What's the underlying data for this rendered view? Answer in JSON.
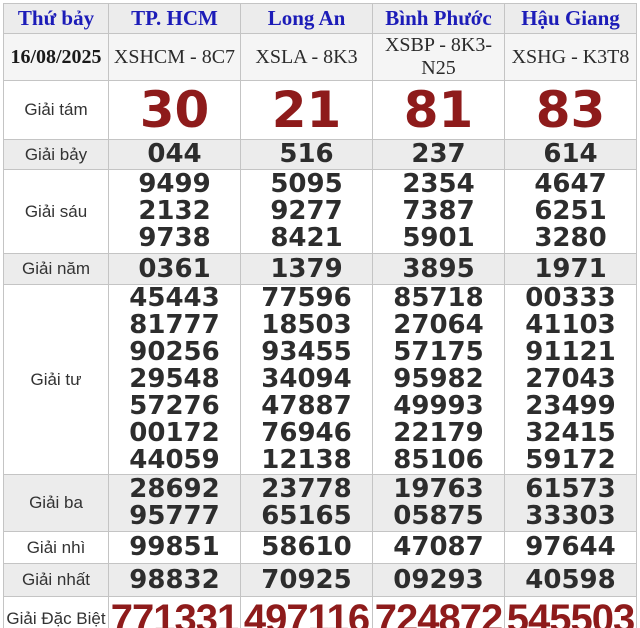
{
  "table": {
    "header": {
      "day": "Thứ bảy",
      "provinces": [
        "TP. HCM",
        "Long An",
        "Bình Phước",
        "Hậu Giang"
      ]
    },
    "date_row": {
      "date": "16/08/2025",
      "codes": [
        "XSHCM - 8C7",
        "XSLA - 8K3",
        "XSBP - 8K3-N25",
        "XSHG - K3T8"
      ]
    },
    "prize_rows": [
      {
        "label": "Giải tám",
        "emphasis": "xl",
        "values": [
          [
            "30"
          ],
          [
            "21"
          ],
          [
            "81"
          ],
          [
            "83"
          ]
        ]
      },
      {
        "label": "Giải bảy",
        "emphasis": null,
        "values": [
          [
            "044"
          ],
          [
            "516"
          ],
          [
            "237"
          ],
          [
            "614"
          ]
        ]
      },
      {
        "label": "Giải sáu",
        "emphasis": null,
        "values": [
          [
            "9499",
            "2132",
            "9738"
          ],
          [
            "5095",
            "9277",
            "8421"
          ],
          [
            "2354",
            "7387",
            "5901"
          ],
          [
            "4647",
            "6251",
            "3280"
          ]
        ]
      },
      {
        "label": "Giải năm",
        "emphasis": null,
        "values": [
          [
            "0361"
          ],
          [
            "1379"
          ],
          [
            "3895"
          ],
          [
            "1971"
          ]
        ]
      },
      {
        "label": "Giải tư",
        "emphasis": null,
        "values": [
          [
            "45443",
            "81777",
            "90256",
            "29548",
            "57276",
            "00172",
            "44059"
          ],
          [
            "77596",
            "18503",
            "93455",
            "34094",
            "47887",
            "76946",
            "12138"
          ],
          [
            "85718",
            "27064",
            "57175",
            "95982",
            "49993",
            "22179",
            "85106"
          ],
          [
            "00333",
            "41103",
            "91121",
            "27043",
            "23499",
            "32415",
            "59172"
          ]
        ]
      },
      {
        "label": "Giải ba",
        "emphasis": null,
        "values": [
          [
            "28692",
            "95777"
          ],
          [
            "23778",
            "65165"
          ],
          [
            "19763",
            "05875"
          ],
          [
            "61573",
            "33303"
          ]
        ]
      },
      {
        "label": "Giải nhì",
        "emphasis": null,
        "values": [
          [
            "99851"
          ],
          [
            "58610"
          ],
          [
            "47087"
          ],
          [
            "97644"
          ]
        ]
      },
      {
        "label": "Giải nhất",
        "emphasis": null,
        "values": [
          [
            "98832"
          ],
          [
            "70925"
          ],
          [
            "09293"
          ],
          [
            "40598"
          ]
        ]
      },
      {
        "label": "Giải Đặc Biệt",
        "emphasis": "db",
        "values": [
          [
            "771331"
          ],
          [
            "497116"
          ],
          [
            "724872"
          ],
          [
            "545503"
          ]
        ]
      }
    ],
    "colors": {
      "header_link_blue": "#1c1cb8",
      "highlight_prize_red": "#8e1b1b",
      "row_shade_gray": "#ececec",
      "number_color": "#2d2d2d"
    }
  }
}
